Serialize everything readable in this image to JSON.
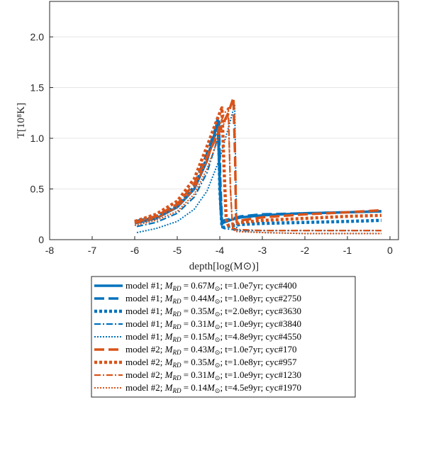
{
  "chart_data": {
    "type": "line",
    "xlabel": "depth[log(M⊙)]",
    "ylabel": "T[10⁸K]",
    "xlim": [
      -8,
      0.2
    ],
    "ylim": [
      0,
      2.35
    ],
    "xticks": [
      "-8",
      "-7",
      "-6",
      "-5",
      "-4",
      "-3",
      "-2",
      "-1",
      "0"
    ],
    "yticks": [
      "0",
      "0.5",
      "1.0",
      "1.5",
      "2.0"
    ],
    "grid": "horizontal",
    "legend_position": "bottom",
    "colors": {
      "model1": "#0072bd",
      "model2": "#d95319"
    },
    "series": [
      {
        "name": "model #1; M_RD = 0.67M⊙; t=1.0e7yr; cyc#400",
        "color": "#0072bd",
        "style": "solid",
        "x": [
          -6.0,
          -5.5,
          -5.0,
          -4.6,
          -4.3,
          -4.1,
          -4.05,
          -4.02,
          -3.98,
          -3.95,
          -3.9,
          -3.7,
          -3.5,
          -3.0,
          -2.0,
          -1.0,
          -0.2
        ],
        "y": [
          0.16,
          0.21,
          0.32,
          0.5,
          0.78,
          1.08,
          1.2,
          0.8,
          0.3,
          0.16,
          0.17,
          0.2,
          0.22,
          0.24,
          0.26,
          0.27,
          0.28
        ]
      },
      {
        "name": "model #1; M_RD = 0.44M⊙; t=1.0e8yr; cyc#2750",
        "color": "#0072bd",
        "style": "dash",
        "x": [
          -6.0,
          -5.5,
          -5.0,
          -4.6,
          -4.3,
          -4.1,
          -4.02,
          -3.99,
          -3.95,
          -3.9,
          -3.7,
          -3.5,
          -3.0,
          -2.0,
          -1.0,
          -0.2
        ],
        "y": [
          0.18,
          0.23,
          0.35,
          0.55,
          0.85,
          1.1,
          1.18,
          0.6,
          0.18,
          0.19,
          0.21,
          0.23,
          0.25,
          0.26,
          0.27,
          0.28
        ]
      },
      {
        "name": "model #1; M_RD = 0.35M⊙; t=2.0e8yr; cyc#3630",
        "color": "#0072bd",
        "style": "dot-thick",
        "x": [
          -5.95,
          -5.5,
          -5.0,
          -4.6,
          -4.3,
          -4.1,
          -4.03,
          -4.0,
          -3.95,
          -3.9,
          -3.7,
          -3.5,
          -3.0,
          -2.0,
          -1.0,
          -0.2
        ],
        "y": [
          0.17,
          0.22,
          0.33,
          0.52,
          0.8,
          1.05,
          1.13,
          0.5,
          0.13,
          0.12,
          0.14,
          0.15,
          0.16,
          0.17,
          0.18,
          0.19
        ]
      },
      {
        "name": "model #1; M_RD = 0.31M⊙; t=1.0e9yr; cyc#3840",
        "color": "#0072bd",
        "style": "dashdot",
        "x": [
          -5.95,
          -5.5,
          -5.0,
          -4.6,
          -4.3,
          -4.1,
          -4.02,
          -3.99,
          -3.95,
          -3.9,
          -3.7,
          -3.5,
          -3.0,
          -2.0,
          -1.0,
          -0.2
        ],
        "y": [
          0.13,
          0.17,
          0.26,
          0.42,
          0.66,
          0.93,
          1.06,
          0.4,
          0.12,
          0.11,
          0.1,
          0.09,
          0.09,
          0.09,
          0.09,
          0.09
        ]
      },
      {
        "name": "model #1; M_RD = 0.15M⊙; t=4.8e9yr; cyc#4550",
        "color": "#0072bd",
        "style": "dot",
        "x": [
          -5.95,
          -5.5,
          -5.0,
          -4.6,
          -4.3,
          -4.0,
          -3.8,
          -3.65,
          -3.62,
          -3.6,
          -3.5,
          -3.0,
          -2.0,
          -1.0,
          -0.2
        ],
        "y": [
          0.07,
          0.11,
          0.18,
          0.3,
          0.48,
          0.8,
          1.1,
          1.33,
          0.5,
          0.1,
          0.08,
          0.07,
          0.06,
          0.06,
          0.06
        ]
      },
      {
        "name": "model #2; M_RD = 0.43M⊙; t=1.0e7yr; cyc#170",
        "color": "#d95319",
        "style": "dash",
        "x": [
          -6.0,
          -5.5,
          -5.0,
          -4.6,
          -4.3,
          -4.0,
          -3.8,
          -3.68,
          -3.64,
          -3.62,
          -3.6,
          -3.5,
          -3.0,
          -2.0,
          -1.0,
          -0.2
        ],
        "y": [
          0.17,
          0.23,
          0.35,
          0.55,
          0.82,
          1.08,
          1.25,
          1.4,
          0.8,
          0.25,
          0.17,
          0.19,
          0.22,
          0.25,
          0.27,
          0.29
        ]
      },
      {
        "name": "model #2; M_RD = 0.35M⊙; t=1.0e8yr; cyc#957",
        "color": "#d95319",
        "style": "dot-thick",
        "x": [
          -6.0,
          -5.5,
          -5.0,
          -4.6,
          -4.3,
          -4.05,
          -3.95,
          -3.9,
          -3.85,
          -3.8,
          -3.7,
          -3.5,
          -3.0,
          -2.0,
          -1.0,
          -0.2
        ],
        "y": [
          0.18,
          0.25,
          0.38,
          0.6,
          0.92,
          1.2,
          1.3,
          0.7,
          0.2,
          0.14,
          0.15,
          0.17,
          0.19,
          0.21,
          0.23,
          0.24
        ]
      },
      {
        "name": "model #2; M_RD = 0.31M⊙; t=1.0e9yr; cyc#1230",
        "color": "#d95319",
        "style": "dashdot",
        "x": [
          -6.0,
          -5.5,
          -5.0,
          -4.6,
          -4.3,
          -4.05,
          -3.9,
          -3.8,
          -3.75,
          -3.7,
          -3.6,
          -3.0,
          -2.0,
          -1.0,
          -0.2
        ],
        "y": [
          0.16,
          0.21,
          0.32,
          0.5,
          0.78,
          1.08,
          1.24,
          1.3,
          0.5,
          0.12,
          0.1,
          0.09,
          0.09,
          0.09,
          0.09
        ]
      },
      {
        "name": "model #2; M_RD = 0.14M⊙; t=4.5e9yr; cyc#1970",
        "color": "#d95319",
        "style": "dot",
        "x": [
          -6.0,
          -5.5,
          -5.0,
          -4.6,
          -4.3,
          -4.05,
          -3.9,
          -3.8,
          -3.75,
          -3.7,
          -3.6,
          -3.0,
          -2.0,
          -1.0,
          -0.2
        ],
        "y": [
          0.14,
          0.19,
          0.28,
          0.45,
          0.7,
          0.98,
          1.15,
          1.22,
          0.5,
          0.1,
          0.08,
          0.07,
          0.06,
          0.06,
          0.06
        ]
      }
    ],
    "legend": [
      {
        "model": "model #1; ",
        "mass": "0.67",
        "rest": "; t=1.0e7yr; cyc#400"
      },
      {
        "model": "model #1; ",
        "mass": "0.44",
        "rest": "; t=1.0e8yr; cyc#2750"
      },
      {
        "model": "model #1; ",
        "mass": "0.35",
        "rest": "; t=2.0e8yr; cyc#3630"
      },
      {
        "model": "model #1; ",
        "mass": "0.31",
        "rest": "; t=1.0e9yr; cyc#3840"
      },
      {
        "model": "model #1; ",
        "mass": "0.15",
        "rest": "; t=4.8e9yr; cyc#4550"
      },
      {
        "model": "model #2; ",
        "mass": "0.43",
        "rest": "; t=1.0e7yr; cyc#170"
      },
      {
        "model": "model #2; ",
        "mass": "0.35",
        "rest": "; t=1.0e8yr; cyc#957"
      },
      {
        "model": "model #2; ",
        "mass": "0.31",
        "rest": "; t=1.0e9yr; cyc#1230"
      },
      {
        "model": "model #2; ",
        "mass": "0.14",
        "rest": "; t=4.5e9yr; cyc#1970"
      }
    ]
  }
}
